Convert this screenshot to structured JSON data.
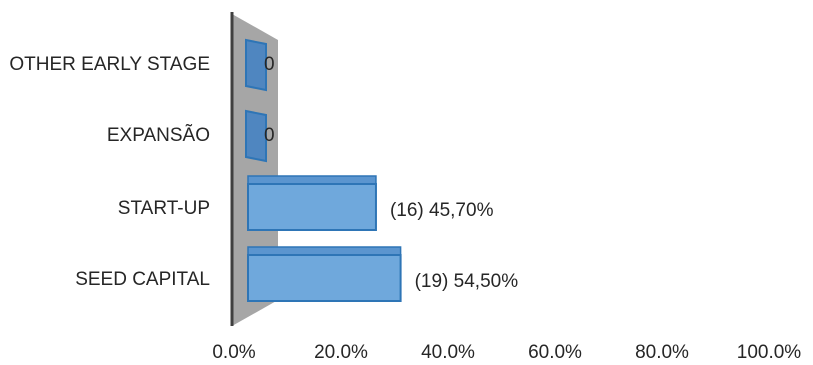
{
  "chart_data": {
    "type": "bar",
    "orientation": "horizontal",
    "style": "3d",
    "categories": [
      "SEED CAPITAL",
      "START-UP",
      "EXPANSÃO",
      "OTHER EARLY STAGE"
    ],
    "values": [
      54.5,
      45.7,
      0,
      0
    ],
    "data_labels": [
      "(19) 54,50%",
      "(16) 45,70%",
      "0",
      "0"
    ],
    "xlim": [
      0,
      100
    ],
    "x_ticks": [
      "0.0%",
      "20.0%",
      "40.0%",
      "60.0%",
      "80.0%",
      "100.0%"
    ],
    "title": "",
    "xlabel": "",
    "ylabel": "",
    "grid": false,
    "legend": "none",
    "colors": {
      "bar_fill": "#6fa8dc",
      "bar_edge": "#2e75b6",
      "bar_top": "#5b95cf",
      "wall": "#a6a6a6",
      "axis": "#404040"
    }
  }
}
